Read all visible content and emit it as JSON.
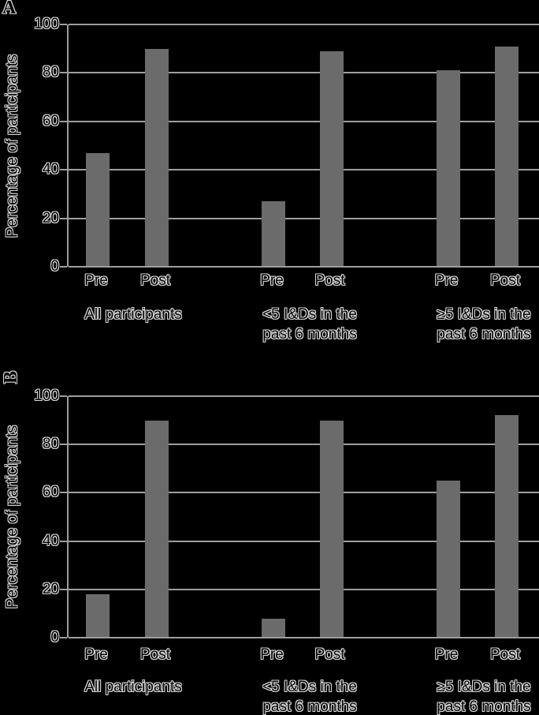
{
  "style": {
    "background": "#000000",
    "bar_color": "#6b6b6b",
    "axis_color": "#9e9e9e",
    "text_color": "#d9d9d9"
  },
  "chart_data": [
    {
      "type": "bar",
      "panel_letter": "A",
      "panel_letter_rotated": false,
      "title": "",
      "ylabel": "Percentage of participants",
      "xlabel": "",
      "ylim": [
        0,
        100
      ],
      "yticks": [
        0,
        20,
        40,
        60,
        80,
        100
      ],
      "grid": true,
      "legend": "none",
      "categories": [
        "All participants",
        "<5 I&Ds in the past 6 months",
        "≥5 I&Ds in the past 6 months"
      ],
      "category_label_lines": [
        [
          "All participants"
        ],
        [
          "<5 I&Ds in the",
          "past 6 months"
        ],
        [
          "≥5 I&Ds in the",
          "past 6 months"
        ]
      ],
      "series": [
        {
          "name": "Pre",
          "values": [
            47,
            27,
            81
          ]
        },
        {
          "name": "Post",
          "values": [
            90,
            89,
            91
          ]
        }
      ]
    },
    {
      "type": "bar",
      "panel_letter": "B",
      "panel_letter_rotated": true,
      "title": "",
      "ylabel": "Percentage of participants",
      "xlabel": "",
      "ylim": [
        0,
        100
      ],
      "yticks": [
        0,
        20,
        40,
        60,
        80,
        100
      ],
      "grid": true,
      "legend": "none",
      "categories": [
        "All participants",
        "<5 I&Ds in the past 6 months",
        "≥5 I&Ds in the past 6 months"
      ],
      "category_label_lines": [
        [
          "All participants"
        ],
        [
          "<5 I&Ds in the",
          "past 6 months"
        ],
        [
          "≥5 I&Ds in the",
          "past 6 months"
        ]
      ],
      "series": [
        {
          "name": "Pre",
          "values": [
            18,
            8,
            65
          ]
        },
        {
          "name": "Post",
          "values": [
            90,
            90,
            92
          ]
        }
      ]
    }
  ]
}
